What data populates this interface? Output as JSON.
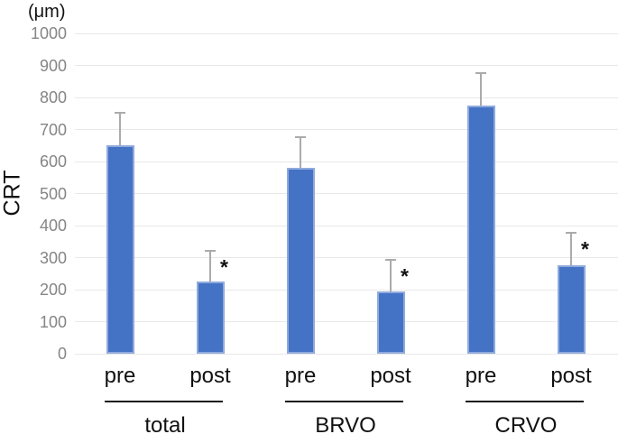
{
  "chart_data": {
    "type": "bar",
    "title": "",
    "unit_label": "(μm)",
    "ylabel": "CRT",
    "xlabel": "",
    "ylim": [
      0,
      1000
    ],
    "yticks": [
      0,
      100,
      200,
      300,
      400,
      500,
      600,
      700,
      800,
      900,
      1000
    ],
    "grid": true,
    "legend_position": "none",
    "categories": [
      "total",
      "BRVO",
      "CRVO"
    ],
    "conditions": [
      "pre",
      "post"
    ],
    "groups": [
      {
        "label": "total",
        "bars": [
          {
            "condition": "pre",
            "value": 650,
            "error": 105,
            "significance": ""
          },
          {
            "condition": "post",
            "value": 225,
            "error": 100,
            "significance": "*"
          }
        ]
      },
      {
        "label": "BRVO",
        "bars": [
          {
            "condition": "pre",
            "value": 580,
            "error": 100,
            "significance": ""
          },
          {
            "condition": "post",
            "value": 195,
            "error": 100,
            "significance": "*"
          }
        ]
      },
      {
        "label": "CRVO",
        "bars": [
          {
            "condition": "pre",
            "value": 775,
            "error": 105,
            "significance": ""
          },
          {
            "condition": "post",
            "value": 275,
            "error": 105,
            "significance": "*"
          }
        ]
      }
    ],
    "colors": {
      "bar_fill": "#4472C4",
      "bar_border": "#8FAADC",
      "error_bar": "#ABABAB",
      "gridline": "#E8E8E8",
      "tick_label": "#858585",
      "text": "#111111"
    }
  }
}
